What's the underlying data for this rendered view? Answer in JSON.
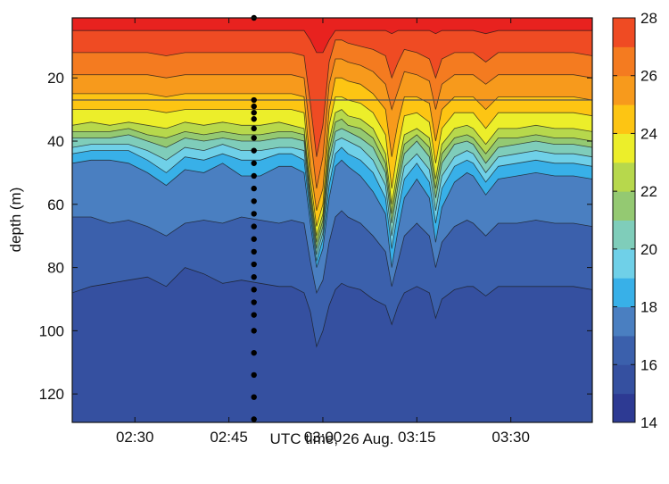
{
  "chart_data": {
    "type": "contour",
    "xlabel": "UTC time, 26 Aug.",
    "ylabel": "depth (m)",
    "x_unit": "UTC time",
    "xlim": [
      "02:20",
      "03:43"
    ],
    "ylim": [
      1,
      129
    ],
    "y_inverted": true,
    "x_ticks": [
      "02:30",
      "02:45",
      "03:00",
      "03:15",
      "03:30"
    ],
    "y_ticks": [
      20,
      40,
      60,
      80,
      100,
      120
    ],
    "colorbar": {
      "min": 14,
      "max": 28,
      "step": 1,
      "ticks": [
        14,
        16,
        18,
        20,
        22,
        24,
        26,
        28
      ],
      "colors": {
        "14": "#2d3a93",
        "15": "#3550a0",
        "16": "#3b60ac",
        "17": "#4a7fc1",
        "18": "#38b0e8",
        "19": "#6fd0e8",
        "20": "#7fcdba",
        "21": "#94c972",
        "22": "#b7d84c",
        "23": "#ecee2a",
        "24": "#fdc513",
        "25": "#f79a1c",
        "26": "#f47b20",
        "27": "#ef4b23",
        "28": "#e8221f"
      }
    },
    "reference_line": {
      "depth": 27
    },
    "profile_marker": {
      "time": "02:49",
      "depths": [
        1,
        27,
        29,
        31,
        33,
        36,
        39,
        43,
        47,
        51,
        55,
        59,
        63,
        67,
        71,
        75,
        79,
        83,
        87,
        91,
        95,
        100,
        107,
        114,
        121,
        128
      ]
    },
    "times": [
      "02:20",
      "02:23",
      "02:26",
      "02:29",
      "02:32",
      "02:35",
      "02:38",
      "02:41",
      "02:44",
      "02:47",
      "02:50",
      "02:53",
      "02:55",
      "02:57",
      "02:58",
      "02:59",
      "03:00",
      "03:01",
      "03:02",
      "03:03",
      "03:04",
      "03:06",
      "03:08",
      "03:10",
      "03:11",
      "03:12",
      "03:13",
      "03:15",
      "03:17",
      "03:18",
      "03:19",
      "03:21",
      "03:23",
      "03:24",
      "03:26",
      "03:28",
      "03:31",
      "03:34",
      "03:37",
      "03:40",
      "03:43"
    ],
    "isotherms": [
      {
        "temp": 27.5,
        "depth": [
          5,
          5,
          5,
          5,
          5,
          5,
          5,
          5,
          5,
          5,
          5,
          5,
          5,
          5,
          8,
          12,
          12,
          8,
          5,
          5,
          5,
          5,
          5,
          5,
          6,
          5,
          5,
          5,
          5,
          6,
          5,
          5,
          5,
          5,
          6,
          5,
          5,
          5,
          5,
          5,
          5
        ]
      },
      {
        "temp": 26.5,
        "depth": [
          12,
          12,
          12,
          12,
          12,
          13,
          12,
          12,
          12,
          12,
          12,
          12,
          12,
          13,
          28,
          45,
          35,
          15,
          8,
          8,
          9,
          10,
          11,
          13,
          20,
          15,
          11,
          12,
          14,
          20,
          14,
          12,
          12,
          12,
          15,
          12,
          12,
          12,
          12,
          12,
          13
        ]
      },
      {
        "temp": 25.5,
        "depth": [
          19,
          19,
          19,
          19,
          19,
          20,
          19,
          19,
          19,
          19,
          19,
          19,
          19,
          20,
          38,
          55,
          45,
          22,
          14,
          14,
          15,
          16,
          18,
          22,
          30,
          24,
          18,
          19,
          21,
          30,
          22,
          19,
          19,
          19,
          22,
          19,
          19,
          19,
          19,
          19,
          20
        ]
      },
      {
        "temp": 24.5,
        "depth": [
          25,
          25,
          25,
          25,
          25,
          26,
          25,
          25,
          25,
          25,
          25,
          25,
          25,
          26,
          48,
          62,
          55,
          30,
          20,
          20,
          21,
          22,
          25,
          30,
          45,
          34,
          26,
          26,
          28,
          40,
          30,
          26,
          26,
          26,
          30,
          26,
          26,
          26,
          26,
          26,
          27
        ]
      },
      {
        "temp": 23.5,
        "depth": [
          30,
          30,
          30,
          30,
          30,
          31,
          30,
          30,
          30,
          30,
          30,
          30,
          30,
          31,
          52,
          67,
          60,
          35,
          26,
          26,
          27,
          28,
          31,
          38,
          55,
          42,
          32,
          31,
          34,
          47,
          36,
          31,
          31,
          31,
          36,
          31,
          31,
          31,
          31,
          31,
          32
        ]
      },
      {
        "temp": 22.5,
        "depth": [
          35,
          34,
          35,
          34,
          35,
          36,
          34,
          35,
          34,
          35,
          35,
          34,
          35,
          36,
          55,
          70,
          63,
          40,
          31,
          30,
          32,
          33,
          36,
          44,
          60,
          48,
          38,
          36,
          39,
          52,
          41,
          36,
          35,
          36,
          41,
          36,
          36,
          35,
          36,
          36,
          37
        ]
      },
      {
        "temp": 21.5,
        "depth": [
          37,
          37,
          37,
          36,
          38,
          39,
          37,
          38,
          37,
          38,
          38,
          37,
          37,
          38,
          57,
          72,
          65,
          43,
          34,
          33,
          35,
          36,
          39,
          47,
          63,
          51,
          41,
          38,
          42,
          55,
          44,
          39,
          38,
          39,
          44,
          39,
          39,
          38,
          39,
          39,
          40
        ]
      },
      {
        "temp": 20.5,
        "depth": [
          39,
          39,
          39,
          38,
          40,
          42,
          39,
          40,
          39,
          40,
          40,
          39,
          39,
          40,
          59,
          74,
          67,
          46,
          37,
          36,
          37,
          39,
          42,
          50,
          66,
          54,
          44,
          40,
          45,
          58,
          47,
          41,
          40,
          41,
          47,
          42,
          41,
          40,
          41,
          41,
          42
        ]
      },
      {
        "temp": 19.5,
        "depth": [
          42,
          41,
          41,
          41,
          43,
          46,
          42,
          43,
          41,
          43,
          43,
          42,
          42,
          43,
          61,
          76,
          69,
          50,
          40,
          39,
          40,
          42,
          46,
          54,
          70,
          58,
          48,
          44,
          49,
          62,
          51,
          45,
          43,
          44,
          50,
          45,
          44,
          43,
          44,
          44,
          45
        ]
      },
      {
        "temp": 18.5,
        "depth": [
          44,
          43,
          43,
          43,
          46,
          50,
          45,
          46,
          44,
          46,
          46,
          44,
          44,
          46,
          63,
          78,
          71,
          54,
          44,
          42,
          44,
          46,
          50,
          58,
          74,
          62,
          52,
          47,
          53,
          66,
          55,
          48,
          46,
          47,
          53,
          48,
          47,
          46,
          47,
          47,
          48
        ]
      },
      {
        "temp": 17.5,
        "depth": [
          47,
          46,
          46,
          47,
          50,
          54,
          49,
          50,
          47,
          51,
          51,
          48,
          48,
          50,
          66,
          80,
          74,
          58,
          48,
          46,
          48,
          51,
          56,
          63,
          80,
          68,
          58,
          52,
          58,
          72,
          61,
          53,
          50,
          51,
          57,
          52,
          51,
          50,
          51,
          51,
          52
        ]
      },
      {
        "temp": 16.5,
        "depth": [
          64,
          64,
          66,
          65,
          67,
          70,
          66,
          65,
          66,
          64,
          65,
          66,
          65,
          66,
          78,
          88,
          84,
          72,
          64,
          62,
          64,
          66,
          70,
          75,
          86,
          78,
          70,
          66,
          70,
          80,
          72,
          67,
          65,
          66,
          70,
          66,
          66,
          65,
          66,
          66,
          67
        ]
      },
      {
        "temp": 15.5,
        "depth": [
          88,
          86,
          85,
          84,
          83,
          86,
          80,
          82,
          85,
          84,
          85,
          86,
          86,
          88,
          94,
          105,
          100,
          92,
          87,
          85,
          86,
          87,
          90,
          92,
          98,
          92,
          88,
          86,
          88,
          96,
          90,
          87,
          86,
          86,
          89,
          86,
          86,
          86,
          86,
          86,
          87
        ]
      }
    ]
  }
}
